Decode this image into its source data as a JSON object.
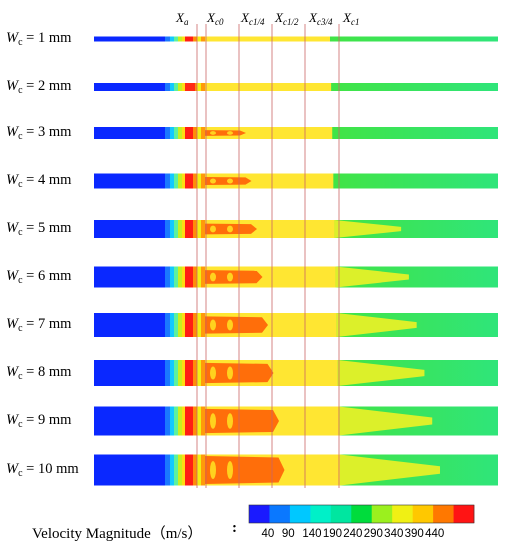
{
  "diagram": {
    "row_symbol": "W",
    "row_subscript": "c",
    "rows": [
      {
        "width": "1 mm",
        "label": "= 1 mm"
      },
      {
        "width": "2 mm",
        "label": "= 2 mm"
      },
      {
        "width": "3 mm",
        "label": "= 3 mm"
      },
      {
        "width": "4 mm",
        "label": "= 4 mm"
      },
      {
        "width": "5 mm",
        "label": "= 5 mm"
      },
      {
        "width": "6 mm",
        "label": "= 6 mm"
      },
      {
        "width": "7 mm",
        "label": "= 7 mm"
      },
      {
        "width": "8 mm",
        "label": "= 8 mm"
      },
      {
        "width": "9 mm",
        "label": "= 9 mm"
      },
      {
        "width": "10 mm",
        "label": "= 10 mm"
      }
    ],
    "positions": [
      {
        "base": "X",
        "sub": "a"
      },
      {
        "base": "X",
        "sub": "c0"
      },
      {
        "base": "X",
        "sub": "c1/4"
      },
      {
        "base": "X",
        "sub": "c1/2"
      },
      {
        "base": "X",
        "sub": "c3/4"
      },
      {
        "base": "X",
        "sub": "c1"
      }
    ]
  },
  "legend": {
    "title": "Velocity Magnitude（m/s）",
    "colon": ":",
    "ticks": [
      "40",
      "90",
      "140",
      "190",
      "240",
      "290",
      "340",
      "390",
      "440"
    ],
    "colors": [
      "#1a1aff",
      "#0a78ff",
      "#00c8ff",
      "#00f0c8",
      "#00e6a0",
      "#00dc3c",
      "#9bf01e",
      "#f0f014",
      "#ffc800",
      "#ff7800",
      "#ff1414"
    ]
  },
  "colors": {
    "inlet": "#0a28ff",
    "jet_core": "#ff6e0a",
    "transition": "#ffe632",
    "downstream": "#3ce636",
    "guide_line": "#cc6666"
  }
}
